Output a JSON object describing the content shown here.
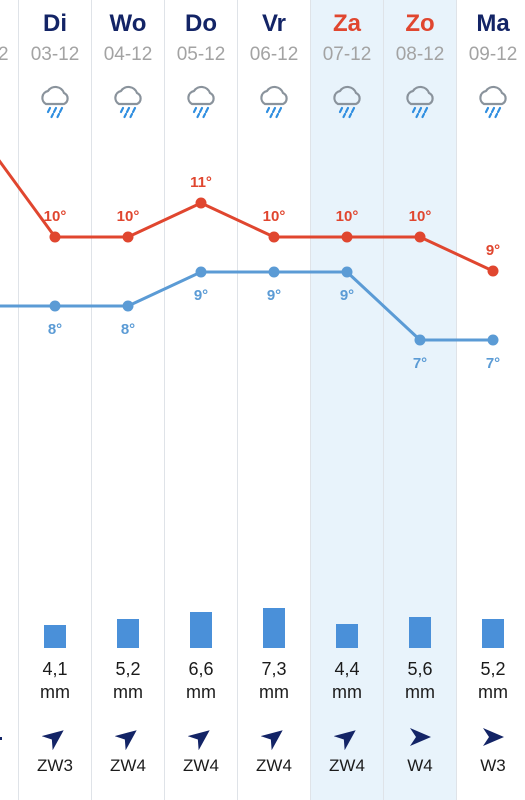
{
  "partial_prev_day": {
    "date_fragment": "2"
  },
  "days": [
    {
      "name": "Di",
      "date": "03-12",
      "weekend": false,
      "weather_icon": "rain-cloud-icon",
      "max": 10,
      "min": 8,
      "rain_amount": "4,1",
      "rain_unit": "mm",
      "rain_level_mm": 4.1,
      "wind_icon": "wind-arrow-icon",
      "wind_dir": "ZW",
      "wind_label": "ZW3"
    },
    {
      "name": "Wo",
      "date": "04-12",
      "weekend": false,
      "weather_icon": "rain-cloud-icon",
      "max": 10,
      "min": 8,
      "rain_amount": "5,2",
      "rain_unit": "mm",
      "rain_level_mm": 5.2,
      "wind_icon": "wind-arrow-icon",
      "wind_dir": "ZW",
      "wind_label": "ZW4"
    },
    {
      "name": "Do",
      "date": "05-12",
      "weekend": false,
      "weather_icon": "rain-cloud-icon",
      "max": 11,
      "min": 9,
      "rain_amount": "6,6",
      "rain_unit": "mm",
      "rain_level_mm": 6.6,
      "wind_icon": "wind-arrow-icon",
      "wind_dir": "ZW",
      "wind_label": "ZW4"
    },
    {
      "name": "Vr",
      "date": "06-12",
      "weekend": false,
      "weather_icon": "rain-cloud-icon",
      "max": 10,
      "min": 9,
      "rain_amount": "7,3",
      "rain_unit": "mm",
      "rain_level_mm": 7.3,
      "wind_icon": "wind-arrow-icon",
      "wind_dir": "ZW",
      "wind_label": "ZW4"
    },
    {
      "name": "Za",
      "date": "07-12",
      "weekend": true,
      "weather_icon": "rain-cloud-icon",
      "max": 10,
      "min": 9,
      "rain_amount": "4,4",
      "rain_unit": "mm",
      "rain_level_mm": 4.4,
      "wind_icon": "wind-arrow-icon",
      "wind_dir": "ZW",
      "wind_label": "ZW4"
    },
    {
      "name": "Zo",
      "date": "08-12",
      "weekend": true,
      "weather_icon": "rain-cloud-icon",
      "max": 10,
      "min": 7,
      "rain_amount": "5,6",
      "rain_unit": "mm",
      "rain_level_mm": 5.6,
      "wind_icon": "wind-arrow-icon",
      "wind_dir": "W",
      "wind_label": "W4"
    },
    {
      "name": "Ma",
      "date": "09-12",
      "weekend": false,
      "weather_icon": "rain-cloud-icon",
      "max": 9,
      "min": 7,
      "rain_amount": "5,2",
      "rain_unit": "mm",
      "rain_level_mm": 5.2,
      "wind_icon": "wind-arrow-icon",
      "wind_dir": "W",
      "wind_label": "W3"
    }
  ],
  "temp_unit_symbol": "°",
  "colors": {
    "max_line": "#e0462f",
    "min_line": "#5b9bd5",
    "weekday_name": "#132466",
    "weekend_name": "#e0462f",
    "weekend_bg": "#e8f3fb",
    "rain_bar": "#4a90d9",
    "wind_arrow": "#132466",
    "date_text": "#a3a3a3"
  },
  "chart_data": {
    "type": "line",
    "categories": [
      "03-12",
      "04-12",
      "05-12",
      "06-12",
      "07-12",
      "08-12",
      "09-12"
    ],
    "series": [
      {
        "values": [
          10,
          10,
          11,
          10,
          10,
          10,
          9
        ]
      },
      {
        "values": [
          8,
          8,
          9,
          9,
          9,
          7,
          7
        ]
      }
    ],
    "partial_prev_values": {
      "max": 12,
      "min": 8
    },
    "unit": "°"
  }
}
